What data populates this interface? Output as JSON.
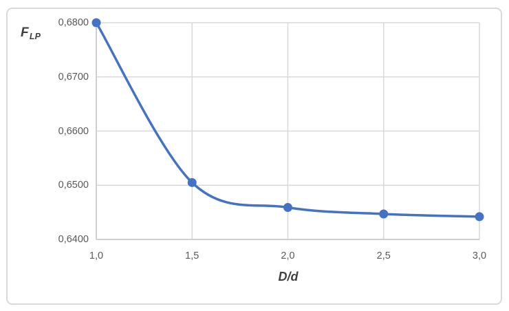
{
  "chart_data": {
    "type": "line",
    "title": "",
    "x": [
      1.0,
      1.5,
      2.0,
      2.5,
      3.0
    ],
    "series": [
      {
        "name": "FLP",
        "values": [
          0.68,
          0.6505,
          0.6459,
          0.6447,
          0.6442
        ]
      }
    ],
    "xlabel": "D/d",
    "ylabel": "FLP",
    "xlim": [
      1.0,
      3.0
    ],
    "ylim": [
      0.64,
      0.68
    ],
    "x_ticks": [
      {
        "value": 1.0,
        "label": "1,0"
      },
      {
        "value": 1.5,
        "label": "1,5"
      },
      {
        "value": 2.0,
        "label": "2,0"
      },
      {
        "value": 2.5,
        "label": "2,5"
      },
      {
        "value": 3.0,
        "label": "3,0"
      }
    ],
    "y_ticks": [
      {
        "value": 0.68,
        "label": "0,6800"
      },
      {
        "value": 0.67,
        "label": "0,6700"
      },
      {
        "value": 0.66,
        "label": "0,6600"
      },
      {
        "value": 0.65,
        "label": "0,6500"
      },
      {
        "value": 0.64,
        "label": "0,6400"
      }
    ],
    "grid": true,
    "legend": false,
    "smooth": true,
    "line_color": "#4472C4",
    "marker_color": "#4472C4",
    "gridline_color": "#d9d9d9",
    "axis_line_color": "#cfcfcf",
    "tick_text_color": "#595959",
    "axis_title_color": "#404040"
  },
  "axis_titles": {
    "y_main": "F",
    "y_sub": "LP",
    "x": "D/d"
  }
}
